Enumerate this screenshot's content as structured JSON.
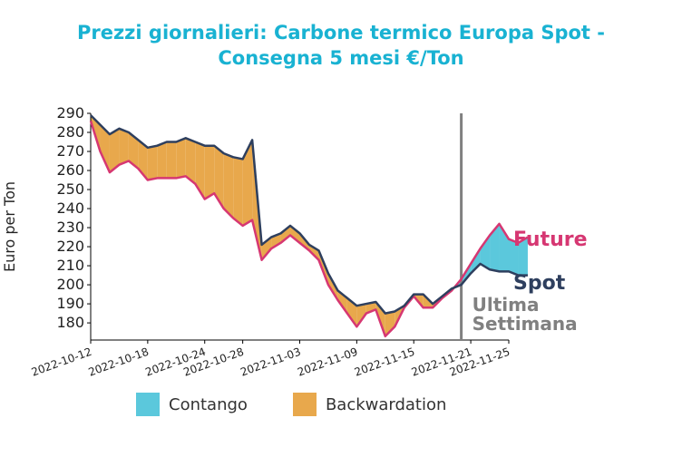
{
  "chart_title": {
    "line1": "Prezzi giornalieri: Carbone termico Europa Spot -",
    "line2": "Consegna 5 mesi €/Ton"
  },
  "colors": {
    "title": "#19b2d2",
    "future": "#d63772",
    "spot": "#2e3f5e",
    "contango": "#5bc8dc",
    "backwardation": "#e8a84c",
    "marker": "#808080"
  },
  "annotations": {
    "future": "Future",
    "spot": "Spot",
    "marker_line1": "Ultima",
    "marker_line2": "Settimana"
  },
  "legend": {
    "contango": "Contango",
    "backwardation": "Backwardation"
  },
  "chart_data": {
    "type": "area",
    "ylabel": "Euro per Ton",
    "xlabel": "",
    "ylim": [
      171,
      290
    ],
    "yticks": [
      180,
      190,
      200,
      210,
      220,
      230,
      240,
      250,
      260,
      270,
      280,
      290
    ],
    "x_start": "2022-10-12",
    "x_end": "2022-11-25",
    "xticks": [
      "2022-10-12",
      "2022-10-18",
      "2022-10-24",
      "2022-10-28",
      "2022-11-03",
      "2022-11-09",
      "2022-11-15",
      "2022-11-21",
      "2022-11-25"
    ],
    "marker_date": "2022-11-20",
    "series": [
      {
        "name": "Spot",
        "points": [
          [
            "2022-10-12",
            289
          ],
          [
            "2022-10-13",
            284
          ],
          [
            "2022-10-14",
            279
          ],
          [
            "2022-10-15",
            282
          ],
          [
            "2022-10-16",
            280
          ],
          [
            "2022-10-17",
            276
          ],
          [
            "2022-10-18",
            272
          ],
          [
            "2022-10-19",
            273
          ],
          [
            "2022-10-20",
            275
          ],
          [
            "2022-10-21",
            275
          ],
          [
            "2022-10-22",
            277
          ],
          [
            "2022-10-23",
            275
          ],
          [
            "2022-10-24",
            273
          ],
          [
            "2022-10-25",
            273
          ],
          [
            "2022-10-26",
            269
          ],
          [
            "2022-10-27",
            267
          ],
          [
            "2022-10-28",
            266
          ],
          [
            "2022-10-29",
            276
          ],
          [
            "2022-10-30",
            221
          ],
          [
            "2022-10-31",
            225
          ],
          [
            "2022-11-01",
            227
          ],
          [
            "2022-11-02",
            231
          ],
          [
            "2022-11-03",
            227
          ],
          [
            "2022-11-04",
            221
          ],
          [
            "2022-11-05",
            218
          ],
          [
            "2022-11-06",
            206
          ],
          [
            "2022-11-07",
            197
          ],
          [
            "2022-11-08",
            193
          ],
          [
            "2022-11-09",
            189
          ],
          [
            "2022-11-10",
            190
          ],
          [
            "2022-11-11",
            191
          ],
          [
            "2022-11-12",
            185
          ],
          [
            "2022-11-13",
            186
          ],
          [
            "2022-11-14",
            189
          ],
          [
            "2022-11-15",
            195
          ],
          [
            "2022-11-16",
            195
          ],
          [
            "2022-11-17",
            190
          ],
          [
            "2022-11-18",
            194
          ],
          [
            "2022-11-19",
            198
          ],
          [
            "2022-11-20",
            200
          ],
          [
            "2022-11-21",
            206
          ],
          [
            "2022-11-22",
            211
          ],
          [
            "2022-11-23",
            208
          ],
          [
            "2022-11-24",
            207
          ],
          [
            "2022-11-25",
            207
          ],
          [
            "2022-11-26",
            205
          ],
          [
            "2022-11-27",
            205
          ]
        ]
      },
      {
        "name": "Future",
        "points": [
          [
            "2022-10-12",
            286
          ],
          [
            "2022-10-13",
            270
          ],
          [
            "2022-10-14",
            259
          ],
          [
            "2022-10-15",
            263
          ],
          [
            "2022-10-16",
            265
          ],
          [
            "2022-10-17",
            261
          ],
          [
            "2022-10-18",
            255
          ],
          [
            "2022-10-19",
            256
          ],
          [
            "2022-10-20",
            256
          ],
          [
            "2022-10-21",
            256
          ],
          [
            "2022-10-22",
            257
          ],
          [
            "2022-10-23",
            253
          ],
          [
            "2022-10-24",
            245
          ],
          [
            "2022-10-25",
            248
          ],
          [
            "2022-10-26",
            240
          ],
          [
            "2022-10-27",
            235
          ],
          [
            "2022-10-28",
            231
          ],
          [
            "2022-10-29",
            234
          ],
          [
            "2022-10-30",
            213
          ],
          [
            "2022-10-31",
            219
          ],
          [
            "2022-11-01",
            222
          ],
          [
            "2022-11-02",
            226
          ],
          [
            "2022-11-03",
            222
          ],
          [
            "2022-11-04",
            218
          ],
          [
            "2022-11-05",
            213
          ],
          [
            "2022-11-06",
            200
          ],
          [
            "2022-11-07",
            192
          ],
          [
            "2022-11-08",
            185
          ],
          [
            "2022-11-09",
            178
          ],
          [
            "2022-11-10",
            185
          ],
          [
            "2022-11-11",
            187
          ],
          [
            "2022-11-12",
            173
          ],
          [
            "2022-11-13",
            178
          ],
          [
            "2022-11-14",
            188
          ],
          [
            "2022-11-15",
            194
          ],
          [
            "2022-11-16",
            188
          ],
          [
            "2022-11-17",
            188
          ],
          [
            "2022-11-18",
            193
          ],
          [
            "2022-11-19",
            197
          ],
          [
            "2022-11-20",
            203
          ],
          [
            "2022-11-21",
            211
          ],
          [
            "2022-11-22",
            219
          ],
          [
            "2022-11-23",
            226
          ],
          [
            "2022-11-24",
            232
          ],
          [
            "2022-11-25",
            224
          ],
          [
            "2022-11-26",
            222
          ],
          [
            "2022-11-27",
            225
          ]
        ]
      }
    ]
  }
}
